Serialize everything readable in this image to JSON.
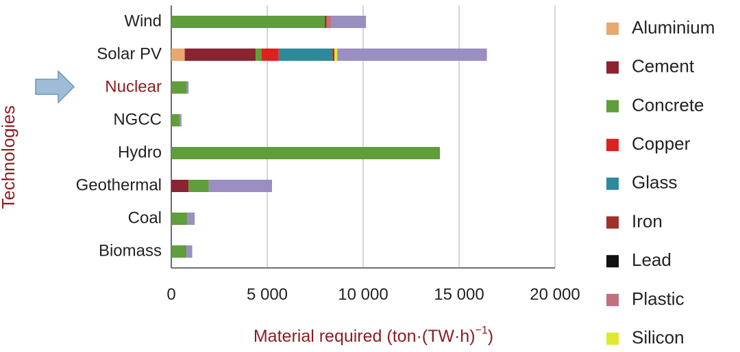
{
  "chart_data": {
    "type": "stacked-bar-horizontal",
    "categories": [
      "Wind",
      "Solar PV",
      "Nuclear",
      "NGCC",
      "Hydro",
      "Geothermal",
      "Coal",
      "Biomass"
    ],
    "highlight": {
      "index": 2,
      "color": "#8b1e22"
    },
    "y_label": "Technologies",
    "x_label": "Material required (ton·(TW·h)",
    "x_label_sup": "−1",
    "x_label_end": ")",
    "label_color": "#8b1e22",
    "xlim": [
      0,
      20000
    ],
    "xticks": [
      0,
      {
        "value": 5000,
        "label": "5 000"
      },
      {
        "value": 10000,
        "label": "10 000"
      },
      {
        "value": 15000,
        "label": "15 000"
      },
      {
        "value": 20000,
        "label": "20 000"
      }
    ],
    "grid": true,
    "legend": "right",
    "series": [
      {
        "name": "Aluminium",
        "color": "#e8a870",
        "values": [
          0,
          700,
          0,
          0,
          0,
          0,
          0,
          0
        ]
      },
      {
        "name": "Cement",
        "color": "#8b2330",
        "values": [
          0,
          3700,
          0,
          0,
          0,
          900,
          0,
          0
        ]
      },
      {
        "name": "Concrete",
        "color": "#5f9e3a",
        "values": [
          8000,
          300,
          800,
          430,
          14000,
          1050,
          820,
          790
        ]
      },
      {
        "name": "Copper",
        "color": "#e02020",
        "values": [
          0,
          900,
          0,
          0,
          0,
          0,
          0,
          0
        ]
      },
      {
        "name": "Glass",
        "color": "#2e8a9a",
        "values": [
          0,
          2800,
          0,
          0,
          0,
          0,
          0,
          0
        ]
      },
      {
        "name": "Iron",
        "color": "#a0302a",
        "values": [
          100,
          100,
          0,
          0,
          0,
          0,
          0,
          0
        ]
      },
      {
        "name": "Lead",
        "color": "#111111",
        "values": [
          0,
          0,
          0,
          0,
          0,
          0,
          0,
          0
        ]
      },
      {
        "name": "Plastic",
        "color": "#c07080",
        "values": [
          250,
          0,
          0,
          0,
          0,
          0,
          0,
          0
        ]
      },
      {
        "name": "Silicon",
        "color": "#e0e830",
        "values": [
          0,
          150,
          0,
          0,
          0,
          0,
          0,
          0
        ]
      },
      {
        "name": null,
        "color": "#9b8ec0",
        "values": [
          1800,
          7800,
          100,
          100,
          0,
          3300,
          400,
          300
        ]
      }
    ]
  }
}
